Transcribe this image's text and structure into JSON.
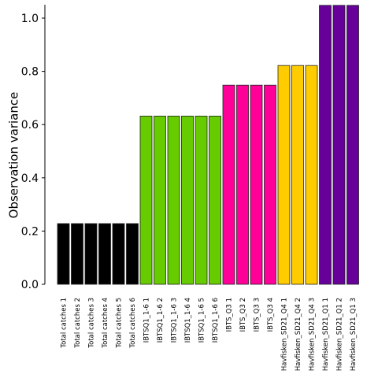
{
  "chart_data": {
    "type": "bar",
    "title": "",
    "xlabel": "",
    "ylabel": "Observation variance",
    "ylim": [
      0,
      1.0
    ],
    "yticks": [
      "0.0",
      "0.2",
      "0.4",
      "0.6",
      "0.8",
      "1.0"
    ],
    "grid": false,
    "legend": "none",
    "categories": [
      "Total catches 1",
      "Total catches 2",
      "Total catches 3",
      "Total catches 4",
      "Total catches 5",
      "Total catches 6",
      "IBTSQ1_1-6 1",
      "IBTSQ1_1-6 2",
      "IBTSQ1_1-6 3",
      "IBTSQ1_1-6 4",
      "IBTSQ1_1-6 5",
      "IBTSQ1_1-6 6",
      "IBTS_Q3 1",
      "IBTS_Q3 2",
      "IBTS_Q3 3",
      "IBTS_Q3 4",
      "Havfisken_SD21_Q4 1",
      "Havfisken_SD21_Q4 2",
      "Havfisken_SD21_Q4 3",
      "Havfisken_SD21_Q1 1",
      "Havfisken_SD21_Q1 2",
      "Havfisken_SD21_Q1 3"
    ],
    "values": [
      0.228,
      0.228,
      0.228,
      0.228,
      0.228,
      0.228,
      0.632,
      0.632,
      0.632,
      0.632,
      0.632,
      0.632,
      0.748,
      0.748,
      0.748,
      0.748,
      0.822,
      0.822,
      0.822,
      1.048,
      1.048,
      1.048
    ],
    "colors": [
      "#000000",
      "#000000",
      "#000000",
      "#000000",
      "#000000",
      "#000000",
      "#66cc00",
      "#66cc00",
      "#66cc00",
      "#66cc00",
      "#66cc00",
      "#66cc00",
      "#ff0099",
      "#ff0099",
      "#ff0099",
      "#ff0099",
      "#ffcc00",
      "#ffcc00",
      "#ffcc00",
      "#660099",
      "#660099",
      "#660099"
    ]
  }
}
